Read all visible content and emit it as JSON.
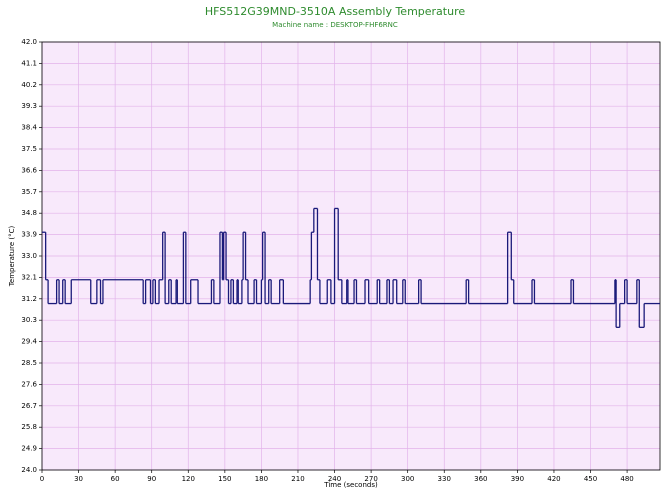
{
  "chart_data": {
    "type": "line",
    "drawstyle": "steps-post",
    "title": "HFS512G39MND-3510A Assembly Temperature",
    "subtitle": "Machine name : DESKTOP-FHF6RNC",
    "xlabel": "Time (seconds)",
    "ylabel": "Temperature (°C)",
    "background": "#f8e9fb",
    "grid": true,
    "xlim": [
      0,
      507
    ],
    "ylim": [
      24,
      42
    ],
    "xticks": [
      0,
      30,
      60,
      90,
      120,
      150,
      180,
      210,
      240,
      270,
      300,
      330,
      360,
      390,
      420,
      450,
      480
    ],
    "yticks": [
      {
        "value": 24,
        "label": "24.0"
      },
      24.9,
      25.8,
      26.7,
      27.6,
      28.5,
      29.4,
      30.3,
      31.2,
      32.1,
      {
        "value": 33,
        "label": "33.0"
      },
      33.9,
      34.8,
      35.7,
      36.6,
      37.5,
      38.4,
      39.3,
      40.2,
      41.1,
      {
        "value": 42,
        "label": "42.0"
      }
    ],
    "series": [
      {
        "color": "#1a1a7a",
        "x": [
          0,
          3,
          5,
          12,
          14,
          17,
          19,
          24,
          40,
          45,
          48,
          50,
          83,
          85,
          89,
          91,
          93,
          96,
          99,
          101,
          104,
          106,
          110,
          111,
          116,
          118,
          122,
          128,
          139,
          141,
          146,
          148,
          149,
          151,
          153,
          155,
          157,
          160,
          161,
          164,
          165,
          167,
          169,
          174,
          176,
          180,
          181,
          183,
          186,
          188,
          195,
          198,
          220,
          221,
          223,
          226,
          228,
          234,
          237,
          240,
          243,
          246,
          250,
          251,
          256,
          258,
          265,
          268,
          275,
          277,
          283,
          285,
          288,
          291,
          296,
          298,
          309,
          311,
          348,
          350,
          382,
          385,
          387,
          402,
          404,
          434,
          436,
          470,
          471,
          474,
          478,
          480,
          488,
          490,
          494,
          507
        ],
        "values": [
          34,
          32,
          31,
          32,
          31,
          32,
          31,
          32,
          31,
          32,
          31,
          32,
          31,
          32,
          31,
          32,
          31,
          32,
          34,
          31,
          32,
          31,
          32,
          31,
          34,
          31,
          32,
          31,
          32,
          31,
          34,
          32,
          34,
          32,
          31,
          32,
          31,
          32,
          31,
          32,
          34,
          32,
          31,
          32,
          31,
          32,
          34,
          31,
          32,
          31,
          32,
          31,
          32,
          34,
          35,
          32,
          31,
          32,
          31,
          35,
          32,
          31,
          32,
          31,
          32,
          31,
          32,
          31,
          32,
          31,
          32,
          31,
          32,
          31,
          32,
          31,
          32,
          31,
          32,
          31,
          34,
          32,
          31,
          32,
          31,
          32,
          31,
          32,
          30,
          31,
          32,
          31,
          32,
          30,
          31,
          31
        ]
      }
    ]
  }
}
